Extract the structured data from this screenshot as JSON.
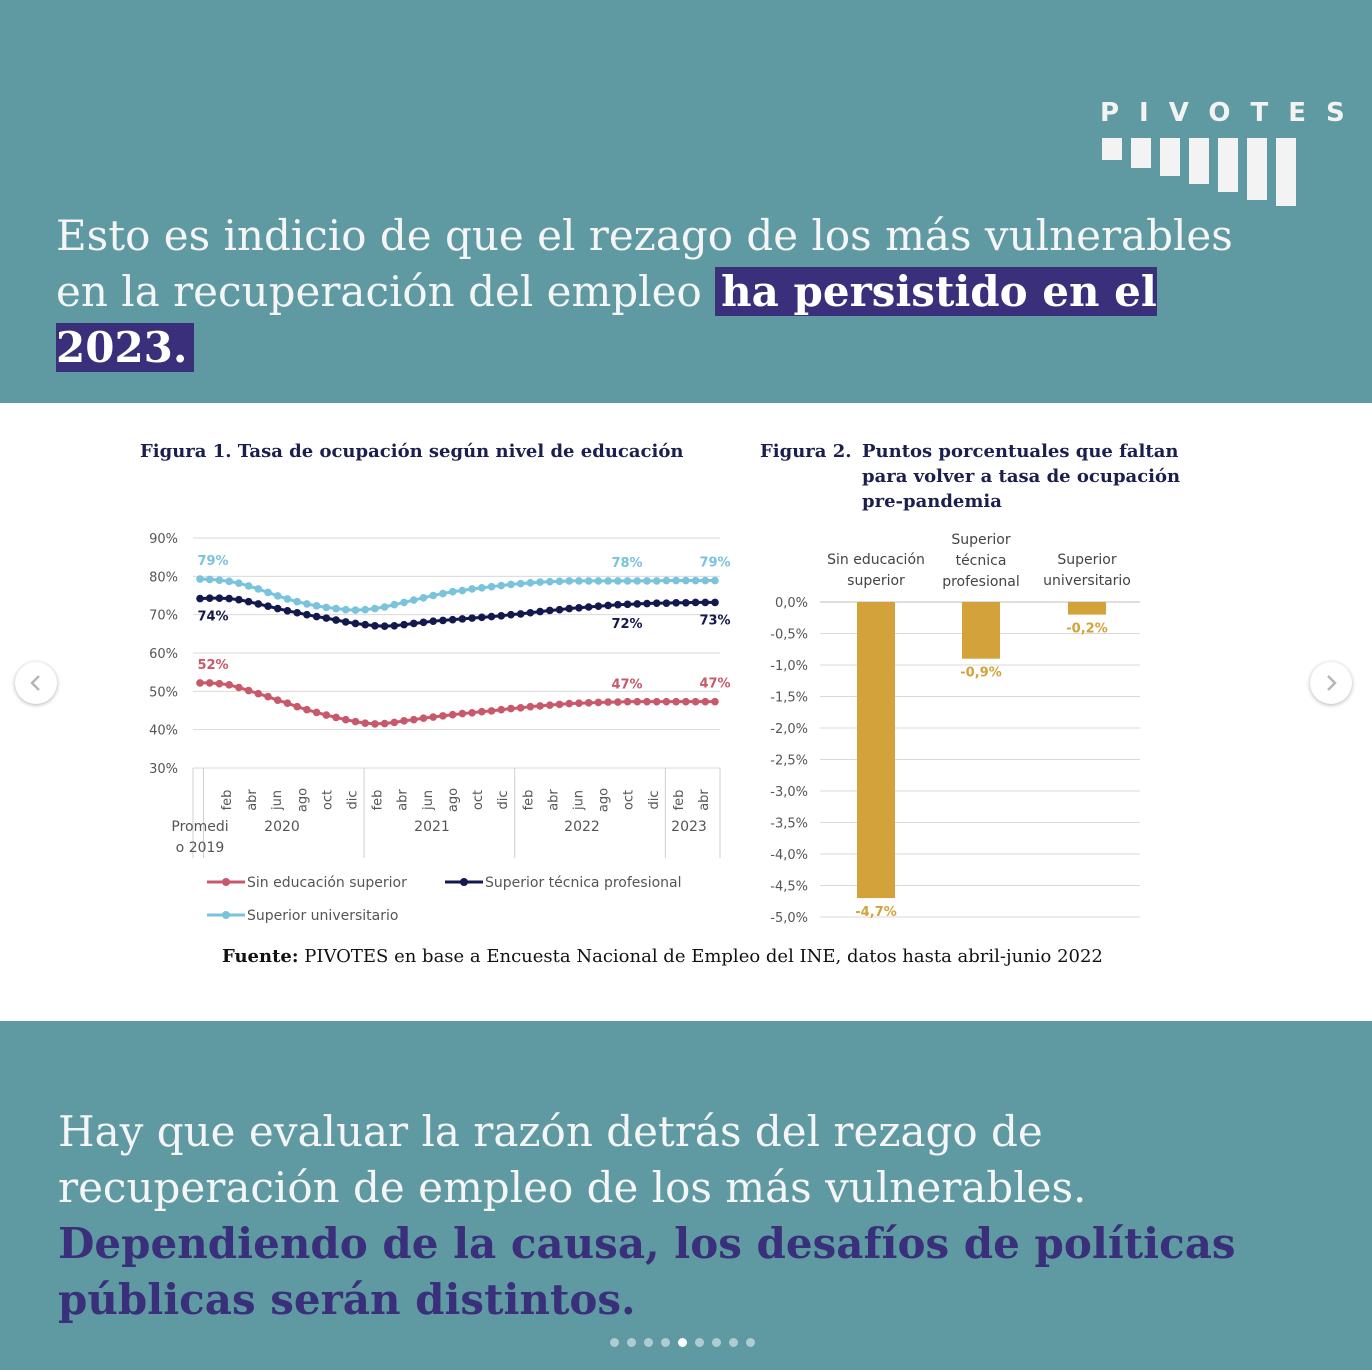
{
  "brand": {
    "name": "PIVOTES"
  },
  "header": {
    "text_plain": "Esto es indicio de que el rezago de los más vulnerables en la recuperación del empleo ",
    "text_highlight": "ha persistido en el 2023."
  },
  "figure1": {
    "title": "Figura 1. Tasa de ocupación según nivel de educación",
    "legend": [
      "Sin educación superior",
      "Superior técnica profesional",
      "Superior universitario"
    ]
  },
  "figure2": {
    "title_label": "Figura 2.",
    "title_lines": [
      "Puntos porcentuales que faltan",
      "para volver a tasa de ocupación",
      "pre-pandemia"
    ]
  },
  "source": {
    "label": "Fuente:",
    "text": " PIVOTES en base a Encuesta Nacional de Empleo del INE, datos hasta abril-junio 2022"
  },
  "footer": {
    "text_plain": "Hay que evaluar la razón detrás del rezago de recuperación de empleo de los más vulnerables. ",
    "text_emphasis": "Dependiendo de la causa, los desafíos de políticas públicas serán distintos."
  },
  "carousel": {
    "total": 9,
    "active": 5
  },
  "colors": {
    "teal": "#5f9aa3",
    "purple": "#3a2f7a",
    "red": "#c8596a",
    "navy": "#13184d",
    "lightblue": "#79c3dc",
    "gold": "#d4a23a"
  },
  "chart_data": [
    {
      "type": "line",
      "title": "Figura 1. Tasa de ocupación según nivel de educación",
      "ylim": [
        30,
        90
      ],
      "yticks": [
        "30%",
        "40%",
        "50%",
        "60%",
        "70%",
        "80%",
        "90%"
      ],
      "x_tick_labels": [
        "feb",
        "abr",
        "jun",
        "ago",
        "oct",
        "dic",
        "feb",
        "abr",
        "jun",
        "ago",
        "oct",
        "dic",
        "feb",
        "abr",
        "jun",
        "ago",
        "oct",
        "dic",
        "feb",
        "abr"
      ],
      "x_groups": [
        "Promedio 2019",
        "2020",
        "2021",
        "2022",
        "2023"
      ],
      "x_group_first_line": "Promedi",
      "x_group_second_line": "o 2019",
      "series": [
        {
          "name": "Sin educación superior",
          "color": "#c8596a",
          "values": [
            52.2,
            52.2,
            52,
            51.7,
            51,
            50.2,
            49.4,
            48.6,
            47.7,
            46.9,
            46,
            45.2,
            44.5,
            43.8,
            43.2,
            42.6,
            42.1,
            41.7,
            41.5,
            41.6,
            41.9,
            42.3,
            42.6,
            43,
            43.3,
            43.6,
            43.9,
            44.2,
            44.4,
            44.7,
            44.9,
            45.2,
            45.5,
            45.7,
            46,
            46.2,
            46.4,
            46.6,
            46.8,
            46.9,
            47,
            47.1,
            47.2,
            47.2,
            47.3,
            47.3,
            47.3,
            47.3,
            47.3,
            47.3,
            47.3,
            47.3,
            47.3,
            47.3
          ],
          "labels": [
            "52%",
            "47%",
            "47%"
          ]
        },
        {
          "name": "Superior técnica profesional",
          "color": "#13184d",
          "values": [
            74.2,
            74.3,
            74.3,
            74.2,
            73.9,
            73.4,
            72.8,
            72.2,
            71.6,
            71,
            70.5,
            70,
            69.5,
            69.1,
            68.6,
            68.1,
            67.7,
            67.4,
            67.1,
            67,
            67.1,
            67.4,
            67.7,
            68,
            68.3,
            68.5,
            68.7,
            68.9,
            69.1,
            69.3,
            69.5,
            69.7,
            70,
            70.2,
            70.5,
            70.8,
            71.1,
            71.3,
            71.6,
            71.8,
            72,
            72.2,
            72.4,
            72.6,
            72.7,
            72.8,
            72.9,
            73,
            73,
            73.1,
            73.1,
            73.2,
            73.2,
            73.2
          ],
          "labels": [
            "74%",
            "72%",
            "73%"
          ]
        },
        {
          "name": "Superior universitario",
          "color": "#79c3dc",
          "values": [
            79.3,
            79.2,
            79,
            78.7,
            78.2,
            77.5,
            76.7,
            75.8,
            74.9,
            74.1,
            73.4,
            72.8,
            72.3,
            71.9,
            71.6,
            71.3,
            71.2,
            71.3,
            71.6,
            72,
            72.6,
            73.2,
            73.8,
            74.4,
            75,
            75.5,
            76,
            76.3,
            76.7,
            77,
            77.3,
            77.6,
            77.9,
            78.1,
            78.3,
            78.5,
            78.6,
            78.7,
            78.8,
            78.8,
            78.8,
            78.8,
            78.8,
            78.8,
            78.8,
            78.8,
            78.8,
            78.8,
            78.9,
            78.9,
            78.9,
            78.9,
            78.9,
            78.9
          ],
          "labels": [
            "79%",
            "78%",
            "79%"
          ]
        }
      ]
    },
    {
      "type": "bar",
      "title": "Figura 2. Puntos porcentuales que faltan para volver a tasa de ocupación pre-pandemia",
      "categories": [
        "Sin educación superior",
        "Superior técnica profesional",
        "Superior universitario"
      ],
      "category_lines": [
        [
          "Sin educación",
          "superior"
        ],
        [
          "Superior",
          "técnica",
          "profesional"
        ],
        [
          "Superior",
          "universitario"
        ]
      ],
      "values": [
        -4.7,
        -0.9,
        -0.2
      ],
      "value_labels": [
        "-4,7%",
        "-0,9%",
        "-0,2%"
      ],
      "color": "#d4a23a",
      "ylim": [
        -5.0,
        0.0
      ],
      "yticks": [
        "0,0%",
        "-0,5%",
        "-1,0%",
        "-1,5%",
        "-2,0%",
        "-2,5%",
        "-3,0%",
        "-3,5%",
        "-4,0%",
        "-4,5%",
        "-5,0%"
      ]
    }
  ]
}
